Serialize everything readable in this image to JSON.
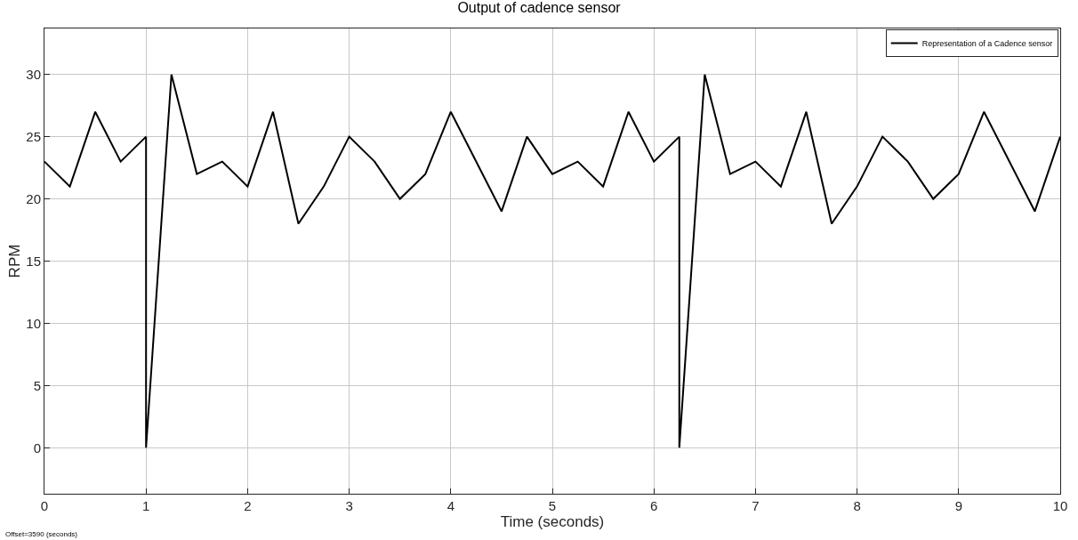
{
  "chart_data": {
    "type": "line",
    "title": "Output of cadence sensor",
    "xlabel": "Time (seconds)",
    "ylabel": "RPM",
    "series": [
      {
        "name": "Representation of a Cadence sensor",
        "color": "#000000",
        "x": [
          0,
          0.25,
          0.5,
          0.75,
          1,
          1,
          1.25,
          1.5,
          1.75,
          2,
          2.25,
          2.5,
          2.75,
          3,
          3.25,
          3.5,
          3.75,
          4,
          4.5,
          4.75,
          5,
          5.25,
          5.5,
          5.75,
          6,
          6.25,
          6.25,
          6.5,
          6.75,
          7,
          7.25,
          7.5,
          7.75,
          8,
          8.25,
          8.5,
          8.75,
          9,
          9.25,
          9.75,
          10
        ],
        "values": [
          23,
          21,
          27,
          23,
          25,
          0,
          30,
          22,
          23,
          21,
          27,
          18,
          21,
          25,
          23,
          20,
          22,
          27,
          19,
          25,
          22,
          23,
          21,
          27,
          23,
          25,
          0,
          30,
          22,
          23,
          21,
          27,
          18,
          21,
          25,
          23,
          20,
          22,
          27,
          19,
          25
        ]
      }
    ],
    "xlim": [
      0,
      10
    ],
    "xticks": [
      0,
      1,
      2,
      3,
      4,
      5,
      6,
      7,
      8,
      9,
      10
    ],
    "ylim": [
      -3.7,
      33.7
    ],
    "yticks": [
      0,
      5,
      10,
      15,
      20,
      25,
      30
    ],
    "grid": true,
    "legend": "top right",
    "marker": "none",
    "line_style": "solid",
    "annotations": [
      "Offset=3590 (seconds)"
    ]
  }
}
